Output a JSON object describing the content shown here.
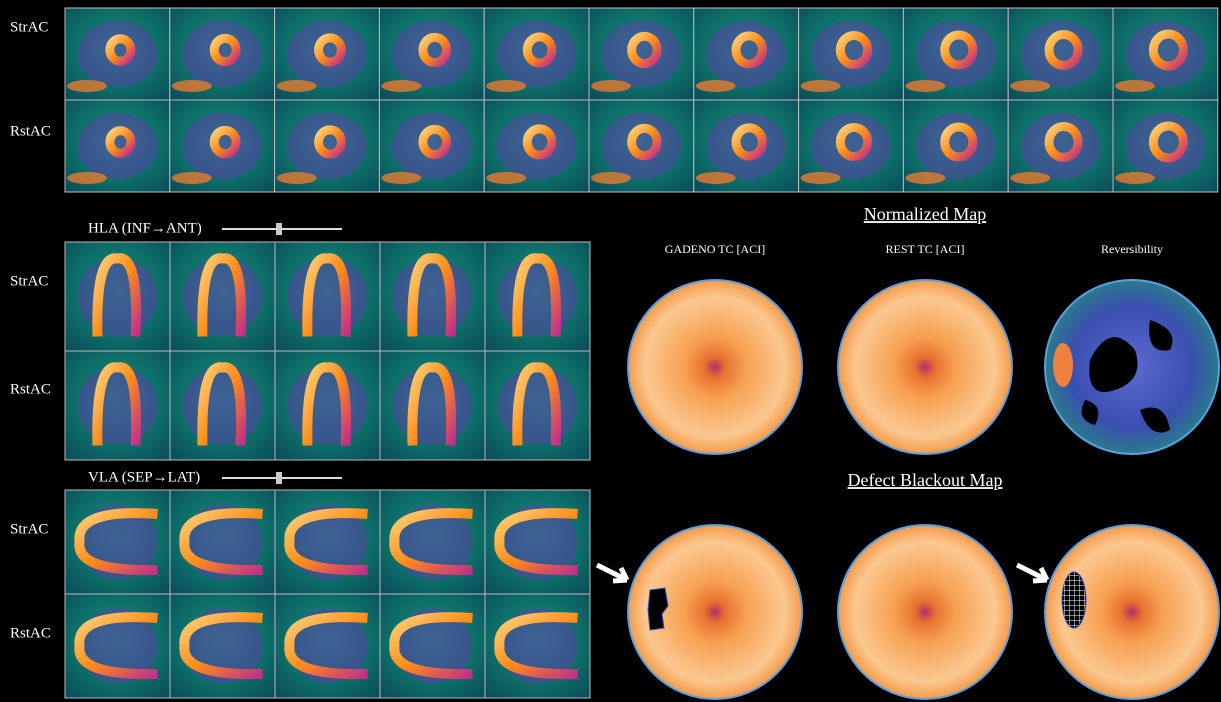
{
  "short_axis": {
    "rows": [
      "StrAC",
      "RstAC"
    ]
  },
  "hla": {
    "title": "HLA (INF→ANT)",
    "rows": [
      "StrAC",
      "RstAC"
    ]
  },
  "vla": {
    "title": "VLA (SEP→LAT)",
    "rows": [
      "StrAC",
      "RstAC"
    ]
  },
  "normalized_map": {
    "title": "Normalized Map",
    "columns": [
      "GADENO TC [ACI]",
      "REST TC [ACI]",
      "Reversibility"
    ]
  },
  "defect_blackout_map": {
    "title": "Defect Blackout Map"
  }
}
